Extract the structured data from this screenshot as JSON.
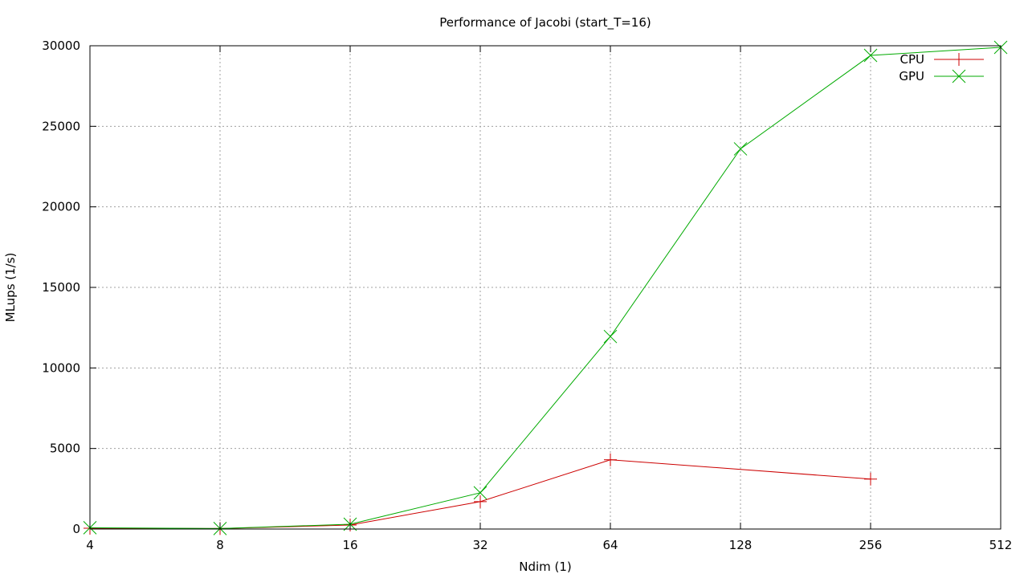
{
  "chart_data": {
    "type": "line",
    "title": "Performance of Jacobi (start_T=16)",
    "xlabel": "Ndim (1)",
    "ylabel": "MLups (1/s)",
    "x_scale": "log2",
    "xlim": [
      4,
      512
    ],
    "ylim": [
      0,
      30000
    ],
    "x_ticks": [
      4,
      8,
      16,
      32,
      64,
      128,
      256,
      512
    ],
    "y_ticks": [
      0,
      5000,
      10000,
      15000,
      20000,
      25000,
      30000
    ],
    "grid": true,
    "legend_position": "top-right",
    "series": [
      {
        "name": "CPU",
        "color": "#cc0000",
        "marker": "plus",
        "x": [
          4,
          8,
          16,
          32,
          64,
          256
        ],
        "y": [
          50,
          30,
          250,
          1700,
          4300,
          3100
        ]
      },
      {
        "name": "GPU",
        "color": "#00aa00",
        "marker": "cross",
        "x": [
          4,
          8,
          16,
          32,
          64,
          128,
          256,
          512
        ],
        "y": [
          80,
          30,
          300,
          2250,
          11950,
          23600,
          29400,
          29900
        ]
      }
    ]
  }
}
